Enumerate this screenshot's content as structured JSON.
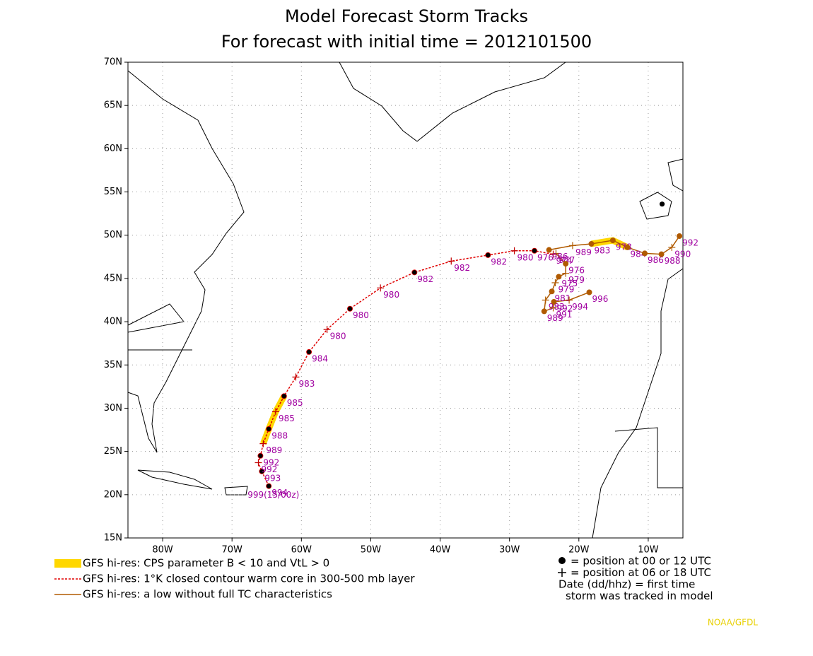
{
  "chart_data": {
    "type": "track",
    "title": "Model Forecast Storm Tracks",
    "subtitle": "For forecast with initial time = 2012101500",
    "xlim": [
      -85,
      -5
    ],
    "ylim": [
      15,
      70
    ],
    "xticks": [
      {
        "value": -80,
        "label": "80W"
      },
      {
        "value": -70,
        "label": "70W"
      },
      {
        "value": -60,
        "label": "60W"
      },
      {
        "value": -50,
        "label": "50W"
      },
      {
        "value": -40,
        "label": "40W"
      },
      {
        "value": -30,
        "label": "30W"
      },
      {
        "value": -20,
        "label": "20W"
      },
      {
        "value": -10,
        "label": "10W"
      }
    ],
    "yticks": [
      {
        "value": 15,
        "label": "15N"
      },
      {
        "value": 20,
        "label": "20N"
      },
      {
        "value": 25,
        "label": "25N"
      },
      {
        "value": 30,
        "label": "30N"
      },
      {
        "value": 35,
        "label": "35N"
      },
      {
        "value": 40,
        "label": "40N"
      },
      {
        "value": 45,
        "label": "45N"
      },
      {
        "value": 50,
        "label": "50N"
      },
      {
        "value": 55,
        "label": "55N"
      },
      {
        "value": 60,
        "label": "60N"
      },
      {
        "value": 65,
        "label": "65N"
      },
      {
        "value": 70,
        "label": "70N"
      }
    ],
    "grid": true,
    "start_label": "999(15/00z)",
    "series": [
      {
        "name": "GFS hi-res: CPS parameter B < 10 and VtL > 0",
        "color": "#ffd700",
        "style": "thick",
        "x": [
          -65.5,
          -64.7,
          -63.7,
          -62.5,
          null,
          -18.2,
          -15.1,
          -13.0
        ],
        "y": [
          25.9,
          27.6,
          29.6,
          31.4,
          null,
          49.0,
          49.4,
          48.6
        ]
      },
      {
        "name": "GFS hi-res: 1°K closed contour warm core in 300-500 mb layer",
        "color": "#e00000",
        "style": "dotted",
        "x": [
          -64.7,
          -65.7,
          -66.2,
          -65.9,
          -65.5,
          -64.7,
          -63.7,
          -62.5,
          -60.8,
          -58.9,
          -56.3,
          -53.0,
          -48.6,
          -43.7,
          -38.4,
          -33.1,
          -29.3,
          -26.4,
          -23.7
        ],
        "y": [
          21.0,
          22.7,
          23.7,
          24.5,
          25.9,
          27.6,
          29.6,
          31.4,
          33.6,
          36.5,
          39.1,
          41.5,
          43.9,
          45.7,
          47.0,
          47.7,
          48.2,
          48.2,
          47.8
        ],
        "markers": [
          "dot",
          "dot",
          "plus",
          "dot",
          "plus",
          "dot",
          "plus",
          "dot",
          "plus",
          "dot",
          "plus",
          "dot",
          "plus",
          "dot",
          "plus",
          "dot",
          "plus",
          "dot",
          "plus"
        ],
        "labels": [
          "994",
          "993",
          "992",
          "992",
          "989",
          "988",
          "985",
          "985",
          "983",
          "984",
          "980",
          "980",
          "980",
          "982",
          "982",
          "982",
          "980",
          "976",
          "974"
        ]
      },
      {
        "name": "GFS hi-res: a low without full TC characteristics",
        "color": "#b05a00",
        "style": "solid",
        "x": [
          -23.3,
          -21.9,
          -21.9,
          -22.9,
          -23.4,
          -23.9,
          -24.8,
          -25.0,
          -23.7,
          -23.6,
          -21.4,
          -18.5,
          null,
          -24.3,
          -20.9,
          -18.2,
          -15.1,
          -13.0,
          -10.5,
          -8.1,
          -6.6,
          -5.5
        ],
        "y": [
          47.9,
          46.7,
          45.6,
          45.2,
          44.5,
          43.5,
          42.5,
          41.2,
          41.6,
          42.3,
          42.5,
          43.4,
          null,
          48.3,
          48.8,
          49.0,
          49.4,
          48.6,
          47.9,
          47.8,
          48.6,
          49.9
        ],
        "markers": [
          "plus",
          "dot",
          "plus",
          "dot",
          "plus",
          "dot",
          "plus",
          "dot",
          "plus",
          "dot",
          "plus",
          "dot",
          null,
          "dot",
          "plus",
          "dot",
          "dot",
          "dot",
          "dot",
          "dot",
          "plus",
          "dot"
        ],
        "labels": [
          "977",
          "976",
          "979",
          "975",
          "979",
          "981",
          "983",
          "989",
          "991",
          "992",
          "994",
          "996",
          null,
          "986",
          "989",
          "983",
          "978",
          "984",
          "986",
          "988",
          "990",
          "992"
        ]
      }
    ],
    "extra_point": {
      "x": -8.0,
      "y": 53.6
    },
    "legend_right": [
      "= position at 00 or 12 UTC",
      "= position at 06 or 18 UTC",
      "Date (dd/hhz)  = first time",
      "storm was tracked in model"
    ],
    "credit": "NOAA/GFDL"
  }
}
